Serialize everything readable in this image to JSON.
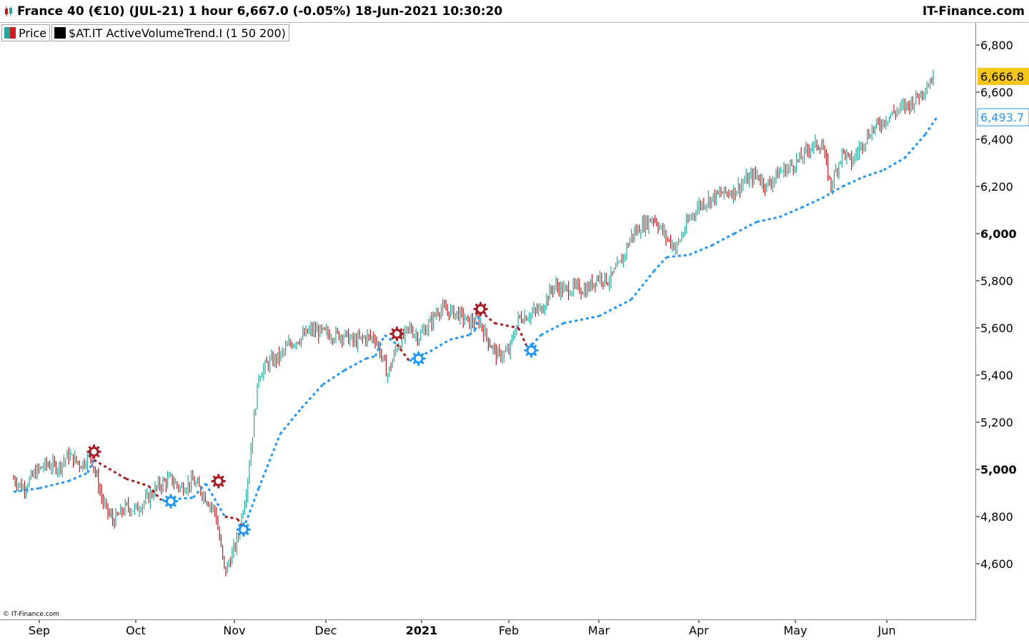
{
  "window": {
    "title": "France 40 (€10) (JUL-21) 1 hour 6,667.0 (-0.05%) 18-Jun-2021 10:30:20",
    "brand": "IT-Finance.com"
  },
  "legend": {
    "price_label": "Price",
    "indicator_label": "$AT.IT ActiveVolumeTrend.I (1 50 200)"
  },
  "copyright": "© IT-Finance.com",
  "colors": {
    "up_candle": "#26a69a",
    "down_candle": "#b71c1c",
    "trend_up": "#2196f3",
    "trend_down": "#a61b25",
    "last_price_bg": "#f5c518",
    "trend_tag_text": "#2196f3"
  },
  "chart_data": {
    "type": "line",
    "instrument": "France 40 (€10) (JUL-21)",
    "timeframe": "1 hour",
    "y_axis": {
      "range": [
        4420,
        6870
      ],
      "ticks": [
        4600,
        4800,
        5000,
        5200,
        5400,
        5600,
        5800,
        6000,
        6200,
        6400,
        6600,
        6800
      ],
      "tick_labels": [
        "4,600",
        "4,800",
        "5,000",
        "5,200",
        "5,400",
        "5,600",
        "5,800",
        "6,000",
        "6,200",
        "6,400",
        "6,600",
        "6,800"
      ],
      "bold_ticks": [
        "5,000",
        "6,000"
      ]
    },
    "x_axis": {
      "labels": [
        "Sep",
        "Oct",
        "Nov",
        "Dec",
        "2021",
        "Feb",
        "Mar",
        "Apr",
        "May",
        "Jun"
      ],
      "bold_labels": [
        "2021"
      ],
      "label_dates": [
        "2020-09-01",
        "2020-10-01",
        "2020-11-01",
        "2020-12-01",
        "2021-01-01",
        "2021-02-01",
        "2021-03-01",
        "2021-04-01",
        "2021-05-01",
        "2021-06-01"
      ]
    },
    "last_price": {
      "value": 6666.8,
      "label": "6,666.8"
    },
    "trend_last": {
      "value": 6493.7,
      "label": "6,493.7"
    },
    "series": [
      {
        "name": "Price",
        "style": "candles",
        "points": [
          [
            "2020-08-24",
            4960
          ],
          [
            "2020-08-27",
            4920
          ],
          [
            "2020-08-31",
            4990
          ],
          [
            "2020-09-03",
            5020
          ],
          [
            "2020-09-07",
            5010
          ],
          [
            "2020-09-10",
            5060
          ],
          [
            "2020-09-14",
            5020
          ],
          [
            "2020-09-17",
            5060
          ],
          [
            "2020-09-21",
            4850
          ],
          [
            "2020-09-24",
            4780
          ],
          [
            "2020-09-28",
            4840
          ],
          [
            "2020-10-01",
            4830
          ],
          [
            "2020-10-05",
            4880
          ],
          [
            "2020-10-08",
            4930
          ],
          [
            "2020-10-12",
            4960
          ],
          [
            "2020-10-15",
            4920
          ],
          [
            "2020-10-19",
            4950
          ],
          [
            "2020-10-22",
            4900
          ],
          [
            "2020-10-26",
            4820
          ],
          [
            "2020-10-29",
            4560
          ],
          [
            "2020-11-02",
            4700
          ],
          [
            "2020-11-05",
            4920
          ],
          [
            "2020-11-09",
            5400
          ],
          [
            "2020-11-12",
            5450
          ],
          [
            "2020-11-16",
            5480
          ],
          [
            "2020-11-19",
            5530
          ],
          [
            "2020-11-23",
            5560
          ],
          [
            "2020-11-26",
            5590
          ],
          [
            "2020-11-30",
            5580
          ],
          [
            "2020-12-03",
            5570
          ],
          [
            "2020-12-07",
            5570
          ],
          [
            "2020-12-10",
            5540
          ],
          [
            "2020-12-14",
            5560
          ],
          [
            "2020-12-17",
            5560
          ],
          [
            "2020-12-21",
            5400
          ],
          [
            "2020-12-24",
            5520
          ],
          [
            "2020-12-28",
            5600
          ],
          [
            "2020-12-31",
            5560
          ],
          [
            "2021-01-04",
            5620
          ],
          [
            "2021-01-07",
            5680
          ],
          [
            "2021-01-11",
            5670
          ],
          [
            "2021-01-14",
            5660
          ],
          [
            "2021-01-18",
            5620
          ],
          [
            "2021-01-21",
            5640
          ],
          [
            "2021-01-25",
            5540
          ],
          [
            "2021-01-28",
            5480
          ],
          [
            "2021-02-01",
            5500
          ],
          [
            "2021-02-04",
            5640
          ],
          [
            "2021-02-08",
            5660
          ],
          [
            "2021-02-11",
            5680
          ],
          [
            "2021-02-15",
            5780
          ],
          [
            "2021-02-18",
            5760
          ],
          [
            "2021-02-22",
            5770
          ],
          [
            "2021-02-25",
            5760
          ],
          [
            "2021-03-01",
            5820
          ],
          [
            "2021-03-04",
            5800
          ],
          [
            "2021-03-08",
            5880
          ],
          [
            "2021-03-11",
            5990
          ],
          [
            "2021-03-15",
            6040
          ],
          [
            "2021-03-18",
            6070
          ],
          [
            "2021-03-22",
            5980
          ],
          [
            "2021-03-25",
            5940
          ],
          [
            "2021-03-29",
            6060
          ],
          [
            "2021-04-01",
            6120
          ],
          [
            "2021-04-05",
            6150
          ],
          [
            "2021-04-08",
            6170
          ],
          [
            "2021-04-12",
            6180
          ],
          [
            "2021-04-15",
            6220
          ],
          [
            "2021-04-19",
            6250
          ],
          [
            "2021-04-22",
            6200
          ],
          [
            "2021-04-26",
            6260
          ],
          [
            "2021-04-29",
            6280
          ],
          [
            "2021-05-03",
            6320
          ],
          [
            "2021-05-06",
            6370
          ],
          [
            "2021-05-10",
            6380
          ],
          [
            "2021-05-13",
            6200
          ],
          [
            "2021-05-17",
            6350
          ],
          [
            "2021-05-20",
            6300
          ],
          [
            "2021-05-24",
            6390
          ],
          [
            "2021-05-27",
            6440
          ],
          [
            "2021-05-31",
            6480
          ],
          [
            "2021-06-03",
            6510
          ],
          [
            "2021-06-07",
            6540
          ],
          [
            "2021-06-10",
            6560
          ],
          [
            "2021-06-14",
            6620
          ],
          [
            "2021-06-17",
            6667
          ]
        ]
      },
      {
        "name": "$AT.IT ActiveVolumeTrend.I (1 50 200)",
        "style": "dotted",
        "points": [
          [
            "2020-08-24",
            4905
          ],
          [
            "2020-09-01",
            4920
          ],
          [
            "2020-09-10",
            4950
          ],
          [
            "2020-09-16",
            4985
          ],
          [
            "2020-09-18",
            5040
          ],
          [
            "2020-09-28",
            4960
          ],
          [
            "2020-10-05",
            4930
          ],
          [
            "2020-10-09",
            4870
          ],
          [
            "2020-10-19",
            4880
          ],
          [
            "2020-10-23",
            4940
          ],
          [
            "2020-10-29",
            4800
          ],
          [
            "2020-11-02",
            4790
          ],
          [
            "2020-11-04",
            4750
          ],
          [
            "2020-11-09",
            4920
          ],
          [
            "2020-11-16",
            5150
          ],
          [
            "2020-11-23",
            5260
          ],
          [
            "2020-11-30",
            5360
          ],
          [
            "2020-12-07",
            5420
          ],
          [
            "2020-12-14",
            5470
          ],
          [
            "2020-12-17",
            5480
          ],
          [
            "2020-12-20",
            5570
          ],
          [
            "2020-12-24",
            5530
          ],
          [
            "2020-12-28",
            5460
          ],
          [
            "2021-01-04",
            5500
          ],
          [
            "2021-01-11",
            5550
          ],
          [
            "2021-01-18",
            5570
          ],
          [
            "2021-01-20",
            5590
          ],
          [
            "2021-01-22",
            5670
          ],
          [
            "2021-01-27",
            5620
          ],
          [
            "2021-02-04",
            5600
          ],
          [
            "2021-02-07",
            5510
          ],
          [
            "2021-02-11",
            5570
          ],
          [
            "2021-02-18",
            5620
          ],
          [
            "2021-03-01",
            5650
          ],
          [
            "2021-03-11",
            5720
          ],
          [
            "2021-03-18",
            5840
          ],
          [
            "2021-03-22",
            5900
          ],
          [
            "2021-03-29",
            5910
          ],
          [
            "2021-04-05",
            5950
          ],
          [
            "2021-04-12",
            6000
          ],
          [
            "2021-04-19",
            6050
          ],
          [
            "2021-04-26",
            6070
          ],
          [
            "2021-05-03",
            6110
          ],
          [
            "2021-05-10",
            6150
          ],
          [
            "2021-05-17",
            6200
          ],
          [
            "2021-05-24",
            6240
          ],
          [
            "2021-05-31",
            6270
          ],
          [
            "2021-06-07",
            6320
          ],
          [
            "2021-06-14",
            6420
          ],
          [
            "2021-06-18",
            6494
          ]
        ]
      }
    ],
    "signals": [
      {
        "date": "2020-09-18",
        "value": 5075,
        "kind": "down"
      },
      {
        "date": "2020-10-12",
        "value": 4865,
        "kind": "up"
      },
      {
        "date": "2020-10-27",
        "value": 4950,
        "kind": "down"
      },
      {
        "date": "2020-11-04",
        "value": 4745,
        "kind": "up"
      },
      {
        "date": "2020-12-24",
        "value": 5575,
        "kind": "down"
      },
      {
        "date": "2020-12-31",
        "value": 5470,
        "kind": "up"
      },
      {
        "date": "2021-01-22",
        "value": 5680,
        "kind": "down"
      },
      {
        "date": "2021-02-08",
        "value": 5505,
        "kind": "up"
      }
    ]
  }
}
